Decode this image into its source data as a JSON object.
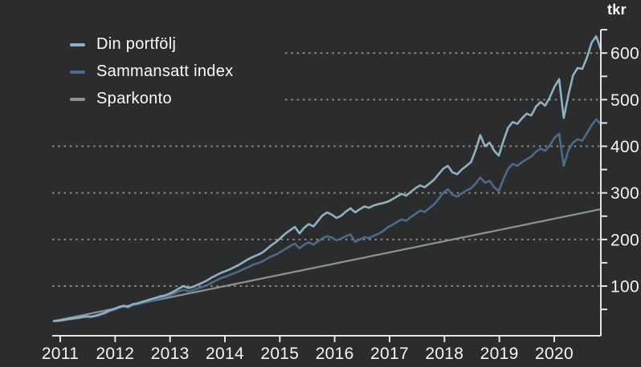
{
  "legend": {
    "items": [
      {
        "label": "Din portfölj",
        "color": "#8fb1c1"
      },
      {
        "label": "Sammansatt index",
        "color": "#4e6a8a"
      },
      {
        "label": "Sparkonto",
        "color": "#8f9293"
      }
    ]
  },
  "colors": {
    "background": "#2b2c2d",
    "axis": "#e5e4e2",
    "grid": "#8b8b8b",
    "text": "#f4f4f4"
  },
  "chart_data": {
    "type": "line",
    "title": "",
    "unit_label": "tkr",
    "xlabel": "",
    "ylabel": "tkr",
    "x_range": [
      2011,
      2020.9
    ],
    "ylim": [
      0,
      650
    ],
    "x_ticks": [
      2011,
      2012,
      2013,
      2014,
      2015,
      2016,
      2017,
      2018,
      2019,
      2020
    ],
    "y_ticks_labeled": [
      100,
      200,
      300,
      400,
      500,
      600
    ],
    "y_ticks_minor": [
      50,
      150,
      250,
      350,
      450,
      550,
      650
    ],
    "grid": "dotted horizontal lines at labeled y ticks",
    "legend_position": "top-left",
    "points_per_year": 12,
    "series": [
      {
        "name": "Din portfölj",
        "color": "#8fb1c1",
        "values": [
          25,
          26,
          27.5,
          29,
          30.5,
          32,
          33.5,
          35,
          34.5,
          36.5,
          39.5,
          43,
          48,
          51,
          55,
          58,
          56,
          61,
          63,
          66,
          69,
          72,
          75,
          78,
          80,
          84,
          89,
          95,
          100,
          96,
          98,
          103,
          107,
          112,
          118,
          123,
          128,
          132,
          136,
          141,
          146,
          152,
          158,
          163,
          167,
          172,
          180,
          188,
          195,
          204,
          213,
          220,
          227,
          213,
          225,
          233,
          228,
          240,
          252,
          258,
          253,
          246,
          251,
          260,
          267,
          258,
          265,
          271,
          268,
          273,
          276,
          278,
          281,
          286,
          292,
          298,
          294,
          302,
          310,
          316,
          312,
          320,
          328,
          340,
          352,
          358,
          344,
          340,
          350,
          358,
          366,
          392,
          424,
          400,
          408,
          390,
          380,
          412,
          440,
          452,
          448,
          460,
          470,
          466,
          485,
          495,
          487,
          505,
          528,
          544,
          461,
          510,
          552,
          568,
          566,
          590,
          622,
          636,
          608
        ]
      },
      {
        "name": "Sammansatt index",
        "color": "#4e6a8a",
        "values": [
          25,
          25.5,
          26.5,
          28,
          29.5,
          31,
          32.5,
          34,
          33.5,
          35.5,
          38,
          41.5,
          46,
          49,
          53,
          56,
          54,
          59,
          61,
          63.5,
          66,
          68.5,
          71.5,
          74.5,
          77,
          80,
          84,
          89,
          92,
          89,
          91,
          95,
          98,
          102,
          107,
          112,
          117,
          120,
          124,
          128,
          132,
          137,
          141,
          146,
          149,
          153,
          159,
          164,
          168,
          174,
          180,
          186,
          191,
          181,
          189,
          194,
          189,
          196,
          203,
          207,
          204,
          198,
          202,
          207,
          211,
          195,
          200,
          205,
          203,
          208,
          212,
          218,
          226,
          231,
          237,
          243,
          240,
          248,
          255,
          262,
          259,
          267,
          275,
          287,
          300,
          308,
          296,
          292,
          299,
          305,
          310,
          320,
          333,
          322,
          326,
          312,
          304,
          330,
          352,
          362,
          358,
          366,
          372,
          378,
          388,
          395,
          390,
          402,
          418,
          427,
          358,
          392,
          408,
          415,
          412,
          428,
          445,
          458,
          447
        ]
      },
      {
        "name": "Sparkonto",
        "color": "#8f9293",
        "shape": "linear",
        "start_value": 25,
        "end_value": 265
      }
    ]
  }
}
